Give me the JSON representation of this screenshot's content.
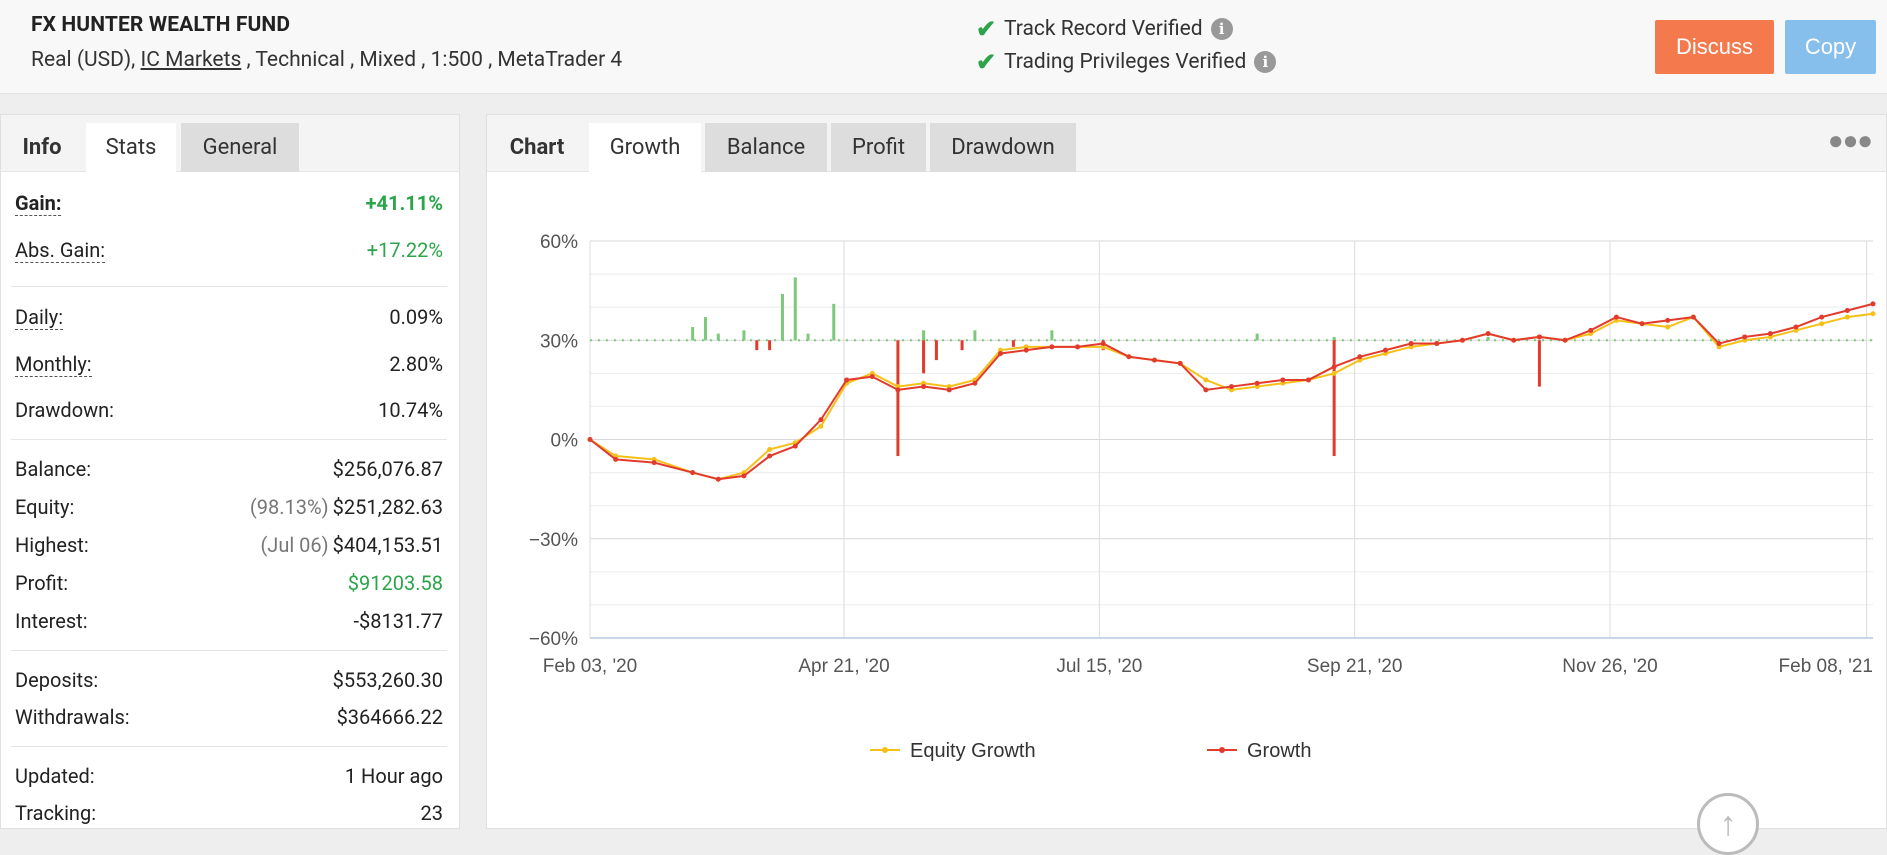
{
  "header": {
    "title": "FX HUNTER WEALTH FUND",
    "sub_prefix": "Real (USD), ",
    "broker": "IC Markets",
    "sub_suffix": " , Technical , Mixed , 1:500 , MetaTrader 4",
    "track_record": "Track Record Verified",
    "trading_privileges": "Trading Privileges Verified",
    "discuss_label": "Discuss",
    "copy_label": "Copy",
    "discuss_color": "#f47a4d",
    "copy_color": "#87bfec"
  },
  "left_tabs": [
    "Info",
    "Stats",
    "General"
  ],
  "stats": {
    "gain": {
      "label": "Gain:",
      "value": "+41.11%"
    },
    "abs_gain": {
      "label": "Abs. Gain:",
      "value": "+17.22%"
    },
    "daily": {
      "label": "Daily:",
      "value": "0.09%"
    },
    "monthly": {
      "label": "Monthly:",
      "value": "2.80%"
    },
    "drawdown": {
      "label": "Drawdown:",
      "value": "10.74%"
    },
    "balance": {
      "label": "Balance:",
      "value": "$256,076.87"
    },
    "equity": {
      "label": "Equity:",
      "sub": "(98.13%)",
      "value": "$251,282.63"
    },
    "highest": {
      "label": "Highest:",
      "sub": "(Jul 06)",
      "value": "$404,153.51"
    },
    "profit": {
      "label": "Profit:",
      "value": "$91203.58"
    },
    "interest": {
      "label": "Interest:",
      "value": "-$8131.77"
    },
    "deposits": {
      "label": "Deposits:",
      "value": "$553,260.30"
    },
    "withdrawals": {
      "label": "Withdrawals:",
      "value": "$364666.22"
    },
    "updated": {
      "label": "Updated:",
      "value": "1 Hour ago"
    },
    "tracking": {
      "label": "Tracking:",
      "value": "23"
    }
  },
  "chart_tabs": [
    "Chart",
    "Growth",
    "Balance",
    "Profit",
    "Drawdown"
  ],
  "chart_data": {
    "type": "line",
    "y_ticks": [
      "60%",
      "30%",
      "0%",
      "−30%",
      "−60%"
    ],
    "ylim": [
      -60,
      60
    ],
    "x_tick_labels": [
      "Feb 03, '20",
      "Apr 21, '20",
      "Jul 15, '20",
      "Sep 21, '20",
      "Nov 26, '20",
      "Feb 08, '21"
    ],
    "x_tick_pos": [
      0,
      0.198,
      0.397,
      0.596,
      0.795,
      0.995
    ],
    "legend_placement": "bottom-center",
    "series": [
      {
        "name": "Equity Growth",
        "color": "#f5c018",
        "x": [
          0,
          0.02,
          0.05,
          0.08,
          0.1,
          0.12,
          0.14,
          0.16,
          0.18,
          0.2,
          0.22,
          0.24,
          0.26,
          0.28,
          0.3,
          0.32,
          0.34,
          0.36,
          0.38,
          0.4,
          0.42,
          0.44,
          0.46,
          0.48,
          0.5,
          0.52,
          0.54,
          0.56,
          0.58,
          0.6,
          0.62,
          0.64,
          0.66,
          0.68,
          0.7,
          0.72,
          0.74,
          0.76,
          0.78,
          0.8,
          0.82,
          0.84,
          0.86,
          0.88,
          0.9,
          0.92,
          0.94,
          0.96,
          0.98,
          1.0
        ],
        "values": [
          0,
          -5,
          -6,
          -10,
          -12,
          -10,
          -3,
          -1,
          4,
          17,
          20,
          16,
          17,
          16,
          18,
          27,
          28,
          28,
          28,
          28,
          25,
          24,
          23,
          18,
          15,
          16,
          17,
          18,
          20,
          24,
          26,
          28,
          29,
          30,
          32,
          30,
          31,
          30,
          32,
          36,
          35,
          34,
          37,
          28,
          30,
          31,
          33,
          35,
          37,
          38
        ]
      },
      {
        "name": "Growth",
        "color": "#e23b2e",
        "x": [
          0,
          0.02,
          0.05,
          0.08,
          0.1,
          0.12,
          0.14,
          0.16,
          0.18,
          0.2,
          0.22,
          0.24,
          0.26,
          0.28,
          0.3,
          0.32,
          0.34,
          0.36,
          0.38,
          0.4,
          0.42,
          0.44,
          0.46,
          0.48,
          0.5,
          0.52,
          0.54,
          0.56,
          0.58,
          0.6,
          0.62,
          0.64,
          0.66,
          0.68,
          0.7,
          0.72,
          0.74,
          0.76,
          0.78,
          0.8,
          0.82,
          0.84,
          0.86,
          0.88,
          0.9,
          0.92,
          0.94,
          0.96,
          0.98,
          1.0
        ],
        "values": [
          0,
          -6,
          -7,
          -10,
          -12,
          -11,
          -5,
          -2,
          6,
          18,
          19,
          15,
          16,
          15,
          17,
          26,
          27,
          28,
          28,
          29,
          25,
          24,
          23,
          15,
          16,
          17,
          18,
          18,
          22,
          25,
          27,
          29,
          29,
          30,
          32,
          30,
          31,
          30,
          33,
          37,
          35,
          36,
          37,
          29,
          31,
          32,
          34,
          37,
          39,
          41
        ]
      }
    ],
    "bars": {
      "up_x": [
        0.08,
        0.09,
        0.1,
        0.12,
        0.15,
        0.16,
        0.17,
        0.19,
        0.26,
        0.3,
        0.36,
        0.52,
        0.58,
        0.7
      ],
      "up_h": [
        4,
        7,
        2,
        3,
        14,
        19,
        2,
        11,
        3,
        3,
        3,
        2,
        1,
        1
      ],
      "down_x": [
        0.13,
        0.14,
        0.24,
        0.26,
        0.27,
        0.29,
        0.33,
        0.4,
        0.58,
        0.74
      ],
      "down_h": [
        -3,
        -3,
        -35,
        -10,
        -6,
        -3,
        -2,
        -3,
        -35,
        -14
      ]
    }
  }
}
